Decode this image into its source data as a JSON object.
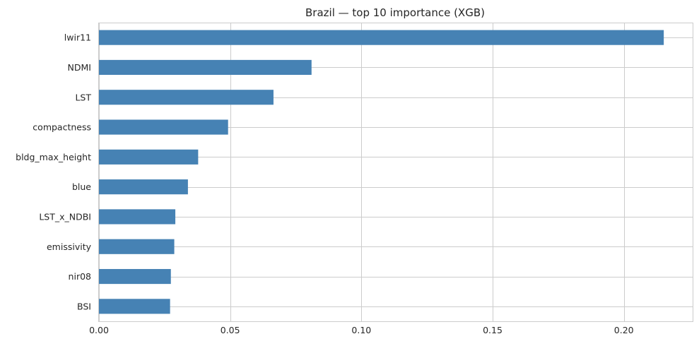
{
  "chart_data": {
    "type": "bar",
    "orientation": "horizontal",
    "title": "Brazil — top 10 importance (XGB)",
    "xlabel": "",
    "ylabel": "",
    "categories": [
      "lwir11",
      "NDMI",
      "LST",
      "compactness",
      "bldg_max_height",
      "blue",
      "LST_x_NDBI",
      "emissivity",
      "nir08",
      "BSI"
    ],
    "values": [
      0.2152,
      0.081,
      0.0665,
      0.0492,
      0.0378,
      0.0339,
      0.0291,
      0.0287,
      0.0274,
      0.0271
    ],
    "xlim": [
      0,
      0.2262
    ],
    "xticks": [
      0.0,
      0.05,
      0.1,
      0.15,
      0.2
    ],
    "xtick_labels": [
      "0.00",
      "0.05",
      "0.10",
      "0.15",
      "0.20"
    ],
    "grid": true,
    "bar_color": "#4682b4"
  }
}
